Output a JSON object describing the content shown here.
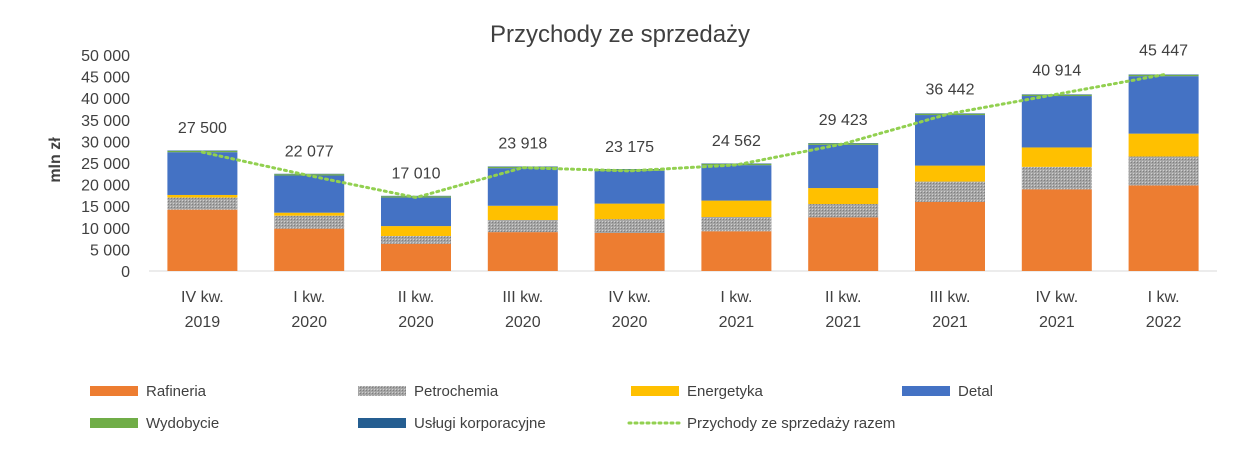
{
  "chart_data": {
    "type": "bar",
    "stacked": true,
    "title": "Przychody ze sprzedaży",
    "ylabel": "mln zł",
    "xlabel": "",
    "ylim": [
      0,
      50000
    ],
    "yticks": [
      "0",
      "5 000",
      "10 000",
      "15 000",
      "20 000",
      "25 000",
      "30 000",
      "35 000",
      "40 000",
      "45 000",
      "50 000"
    ],
    "tick_values": [
      0,
      5000,
      10000,
      15000,
      20000,
      25000,
      30000,
      35000,
      40000,
      45000,
      50000
    ],
    "grid": false,
    "legend_position": "bottom",
    "categories": [
      [
        "IV kw.",
        "2019"
      ],
      [
        "I kw.",
        "2020"
      ],
      [
        "II kw.",
        "2020"
      ],
      [
        "III kw.",
        "2020"
      ],
      [
        "IV kw.",
        "2020"
      ],
      [
        "I kw.",
        "2021"
      ],
      [
        "II kw.",
        "2021"
      ],
      [
        "III kw.",
        "2021"
      ],
      [
        "IV kw.",
        "2021"
      ],
      [
        "I kw.",
        "2022"
      ]
    ],
    "series": [
      {
        "name": "Rafineria",
        "color": "#ED7D31",
        "pattern": false,
        "values": [
          14200,
          9800,
          6300,
          9000,
          8800,
          9200,
          12400,
          16000,
          18900,
          19800
        ]
      },
      {
        "name": "Petrochemia",
        "color": "#A5A5A5",
        "pattern": true,
        "values": [
          2800,
          3000,
          1800,
          2800,
          3200,
          3300,
          3100,
          4700,
          5200,
          6700
        ]
      },
      {
        "name": "Energetyka",
        "color": "#FFC000",
        "pattern": false,
        "values": [
          600,
          700,
          2300,
          3300,
          3600,
          3800,
          3700,
          3700,
          4500,
          5300
        ]
      },
      {
        "name": "Detal",
        "color": "#4472C4",
        "pattern": false,
        "values": [
          9900,
          8600,
          6600,
          8700,
          7600,
          8200,
          10000,
          11700,
          11900,
          13300
        ]
      },
      {
        "name": "Wydobycie",
        "color": "#70AD47",
        "pattern": false,
        "values": [
          300,
          300,
          300,
          300,
          300,
          300,
          300,
          300,
          300,
          300
        ]
      },
      {
        "name": "Usługi korporacyjne",
        "color": "#255E91",
        "pattern": false,
        "values": [
          100,
          100,
          100,
          100,
          100,
          100,
          100,
          100,
          100,
          100
        ]
      }
    ],
    "line": {
      "name": "Przychody ze sprzedaży razem",
      "color": "#92D050",
      "values": [
        27500,
        22077,
        17010,
        23918,
        23175,
        24562,
        29423,
        36442,
        40914,
        45447
      ],
      "labels": [
        "27 500",
        "22 077",
        "17 010",
        "23 918",
        "23 175",
        "24 562",
        "29 423",
        "36 442",
        "40 914",
        "45 447"
      ]
    }
  }
}
